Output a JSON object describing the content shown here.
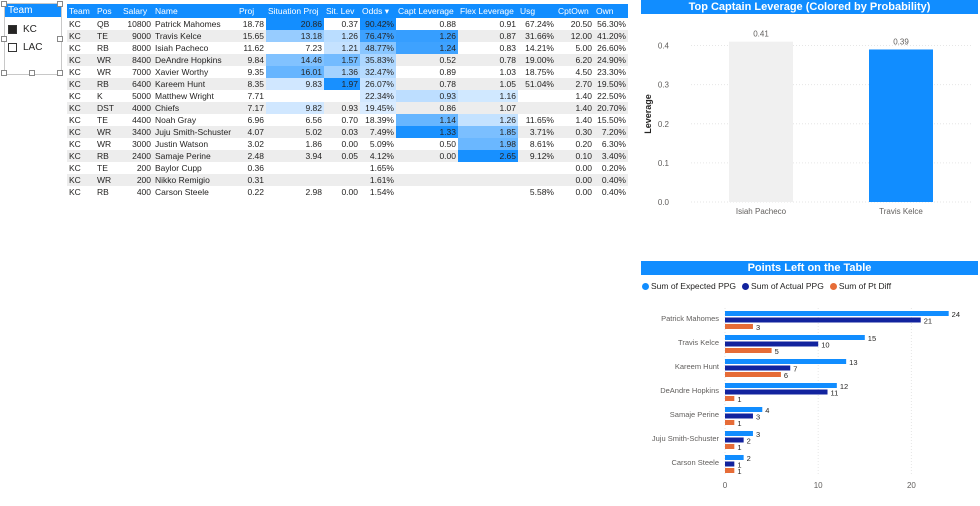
{
  "slicer": {
    "title": "Team",
    "options": [
      {
        "label": "KC",
        "checked": true
      },
      {
        "label": "LAC",
        "checked": false
      }
    ]
  },
  "table": {
    "columns": [
      "Team",
      "Pos",
      "Salary",
      "Name",
      "Proj",
      "Situation Proj",
      "Sit. Lev",
      "Odds",
      "Capt Leverage",
      "Flex Leverage",
      "Usg",
      "CptOwn",
      "Own"
    ],
    "rows": [
      [
        "KC",
        "QB",
        "10800",
        "Patrick Mahomes",
        "18.78",
        "20.86",
        "0.37",
        "90.42%",
        "0.88",
        "0.91",
        "67.24%",
        "20.50",
        "56.30%"
      ],
      [
        "KC",
        "TE",
        "9000",
        "Travis Kelce",
        "15.65",
        "13.18",
        "1.26",
        "76.47%",
        "1.26",
        "0.87",
        "31.66%",
        "12.00",
        "41.20%"
      ],
      [
        "KC",
        "RB",
        "8000",
        "Isiah Pacheco",
        "11.62",
        "7.23",
        "1.21",
        "48.77%",
        "1.24",
        "0.83",
        "14.21%",
        "5.00",
        "26.60%"
      ],
      [
        "KC",
        "WR",
        "8400",
        "DeAndre Hopkins",
        "9.84",
        "14.46",
        "1.57",
        "35.83%",
        "0.52",
        "0.78",
        "19.00%",
        "6.20",
        "24.90%"
      ],
      [
        "KC",
        "WR",
        "7000",
        "Xavier Worthy",
        "9.35",
        "16.01",
        "1.36",
        "32.47%",
        "0.89",
        "1.03",
        "18.75%",
        "4.50",
        "23.30%"
      ],
      [
        "KC",
        "RB",
        "6400",
        "Kareem Hunt",
        "8.35",
        "9.83",
        "1.97",
        "26.07%",
        "0.78",
        "1.05",
        "51.04%",
        "2.70",
        "19.50%"
      ],
      [
        "KC",
        "K",
        "5000",
        "Matthew Wright",
        "7.71",
        "",
        "",
        "22.34%",
        "0.93",
        "1.16",
        "",
        "1.40",
        "22.50%"
      ],
      [
        "KC",
        "DST",
        "4000",
        "Chiefs",
        "7.17",
        "9.82",
        "0.93",
        "19.45%",
        "0.86",
        "1.07",
        "",
        "1.40",
        "20.70%"
      ],
      [
        "KC",
        "TE",
        "4400",
        "Noah Gray",
        "6.96",
        "6.56",
        "0.70",
        "18.39%",
        "1.14",
        "1.26",
        "11.65%",
        "1.40",
        "15.50%"
      ],
      [
        "KC",
        "WR",
        "3400",
        "Juju Smith-Schuster",
        "4.07",
        "5.02",
        "0.03",
        "7.49%",
        "1.33",
        "1.85",
        "3.71%",
        "0.30",
        "7.20%"
      ],
      [
        "KC",
        "WR",
        "3000",
        "Justin Watson",
        "3.02",
        "1.86",
        "0.00",
        "5.09%",
        "0.50",
        "1.98",
        "8.61%",
        "0.20",
        "6.30%"
      ],
      [
        "KC",
        "RB",
        "2400",
        "Samaje Perine",
        "2.48",
        "3.94",
        "0.05",
        "4.12%",
        "0.00",
        "2.65",
        "9.12%",
        "0.10",
        "3.40%"
      ],
      [
        "KC",
        "TE",
        "200",
        "Baylor Cupp",
        "0.36",
        "",
        "",
        "1.65%",
        "",
        "",
        "",
        "0.00",
        "0.20%"
      ],
      [
        "KC",
        "WR",
        "200",
        "Nikko Remigio",
        "0.31",
        "",
        "",
        "1.61%",
        "",
        "",
        "",
        "0.00",
        "0.40%"
      ],
      [
        "KC",
        "RB",
        "400",
        "Carson Steele",
        "0.22",
        "2.98",
        "0.00",
        "1.54%",
        "",
        "",
        "5.58%",
        "0.00",
        "0.40%"
      ]
    ]
  },
  "chart_data": [
    {
      "type": "bar",
      "title": "Top Captain Leverage (Colored by Probability)",
      "ylabel": "Leverage",
      "categories": [
        "Isiah Pacheco",
        "Travis Kelce"
      ],
      "values": [
        0.41,
        0.39
      ],
      "bar_colors": [
        "#F0F0F0",
        "#118DFF"
      ],
      "ylim": [
        0,
        0.45
      ],
      "yticks": [
        "0.0",
        "0.1",
        "0.2",
        "0.3",
        "0.4"
      ],
      "grid": true
    },
    {
      "type": "bar",
      "orientation": "horizontal",
      "title": "Points Left on the Table",
      "categories": [
        "Patrick Mahomes",
        "Travis Kelce",
        "Kareem Hunt",
        "DeAndre Hopkins",
        "Samaje Perine",
        "Juju Smith-Schuster",
        "Carson Steele"
      ],
      "series": [
        {
          "name": "Sum of Expected PPG",
          "color": "#118DFF",
          "values": [
            24,
            15,
            13,
            12,
            4,
            3,
            2
          ]
        },
        {
          "name": "Sum of Actual PPG",
          "color": "#12239E",
          "values": [
            21,
            10,
            7,
            11,
            3,
            2,
            1
          ]
        },
        {
          "name": "Sum of Pt Diff",
          "color": "#E66C37",
          "values": [
            3,
            5,
            6,
            1,
            1,
            1,
            1
          ]
        }
      ],
      "xlim": [
        0,
        25
      ],
      "xticks": [
        "0",
        "10",
        "20"
      ],
      "legend_position": "top"
    }
  ]
}
